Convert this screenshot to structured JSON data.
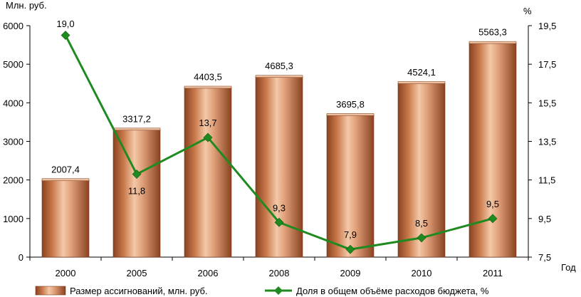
{
  "chart_data": {
    "type": "bar",
    "categories": [
      "2000",
      "2005",
      "2006",
      "2008",
      "2009",
      "2010",
      "2011"
    ],
    "series": [
      {
        "name": "Размер ассигнований, млн. руб.",
        "type": "bar",
        "axis": "left",
        "values": [
          2007.4,
          3317.2,
          4403.5,
          4685.3,
          3695.8,
          4524.1,
          5563.3
        ],
        "labels": [
          "2007,4",
          "3317,2",
          "4403,5",
          "4685,3",
          "3695,8",
          "4524,1",
          "5563,3"
        ],
        "color": "#c9784a"
      },
      {
        "name": "Доля в общем объёме расходов бюджета, %",
        "type": "line",
        "axis": "right",
        "values": [
          19.0,
          11.8,
          13.7,
          9.3,
          7.9,
          8.5,
          9.5
        ],
        "labels": [
          "19,0",
          "11,8",
          "13,7",
          "9,3",
          "7,9",
          "8,5",
          "9,5"
        ],
        "color": "#1f8a1f"
      }
    ],
    "ylabel_left": "Млн. руб.",
    "ylabel_right": "%",
    "xlabel": "Год",
    "ylim_left": [
      0,
      6000
    ],
    "yticks_left": [
      "0",
      "1000",
      "2000",
      "3000",
      "4000",
      "5000",
      "6000"
    ],
    "ylim_right": [
      7.5,
      19.5
    ],
    "yticks_right": [
      "7,5",
      "9,5",
      "11,5",
      "13,5",
      "15,5",
      "17,5",
      "19,5"
    ],
    "grid": false,
    "legend_position": "bottom"
  }
}
